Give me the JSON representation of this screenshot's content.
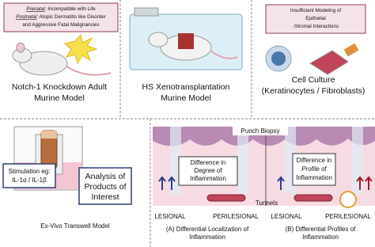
{
  "notch": {
    "callout": [
      {
        "em": "Prenatal",
        "text": ": Incompatible with Life"
      },
      {
        "em": "Postnatal",
        "text": ": Atopic Dermatitis like Disorder"
      },
      "and Aggressive Fatal Malignancies"
    ],
    "label": [
      "Notch-1 Knockdown Adult",
      "Murine Model"
    ]
  },
  "xeno": {
    "label": [
      "HS Xenotransplantation",
      "Murine Model"
    ]
  },
  "culture": {
    "callout": [
      "Insufficient Modeling of",
      "Epithelial",
      "-Stromal Interactions"
    ],
    "label": [
      "Cell Culture",
      "(Keratinocytes / Fibroblasts)"
    ]
  },
  "transwell": {
    "stimulation": [
      "Stimulation eg:",
      "IL-1α / IL-1β"
    ],
    "analysis": [
      "Analysis of",
      "Products of",
      "Interest"
    ],
    "label": "Ex-Vivo Transwell Model"
  },
  "biopsy": {
    "punch": "Punch Biopsy",
    "degree": [
      "Difference in",
      {
        "em": "Degree",
        "text": " of"
      },
      "Inflammation"
    ],
    "profile": [
      "Difference in",
      {
        "em": "Profile",
        "text": " of"
      },
      "Inflammation"
    ],
    "tunnels": "Tunnels",
    "regions": [
      "LESIONAL",
      "PERILESIONAL",
      "LESIONAL",
      "PERILESIONAL"
    ],
    "captions": [
      [
        "(A) Differential Localization of",
        "Inflammation"
      ],
      [
        "(B) Differential Profiles of",
        "Inflammation"
      ]
    ]
  }
}
